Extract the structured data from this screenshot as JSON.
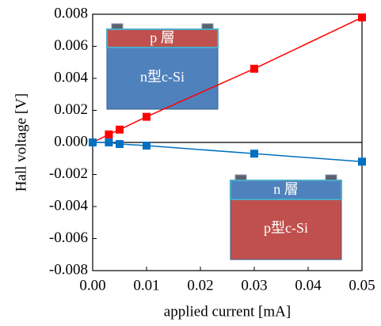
{
  "chart_data": {
    "type": "line",
    "x_label": "applied current [mA]",
    "y_label": "Hall voltage [V]",
    "x": [
      0,
      0.003,
      0.005,
      0.01,
      0.03,
      0.05
    ],
    "series": [
      {
        "color": "#ff0000",
        "values": [
          0,
          0.0005,
          0.0008,
          0.0016,
          0.0046,
          0.0078
        ]
      },
      {
        "color": "#0070c0",
        "values": [
          0,
          0,
          -0.0001,
          -0.0002,
          -0.0007,
          -0.0012
        ]
      }
    ],
    "xlim": [
      0,
      0.05
    ],
    "xticks": [
      {
        "value": 0,
        "label": "0.00"
      },
      0.01,
      0.02,
      0.03,
      0.04,
      0.05
    ],
    "ylim": [
      -0.008,
      0.008
    ],
    "yticks": [
      -0.008,
      -0.006,
      -0.004,
      -0.002,
      {
        "value": 0,
        "label": "0.000"
      },
      0.002,
      0.004,
      0.006,
      0.008
    ],
    "zero_line": true,
    "insets": [
      {
        "top_layer": "p 層",
        "substrate": "n型c-Si",
        "top_color": "#c0504d",
        "substrate_color": "#4f81bd"
      },
      {
        "top_layer": "n 層",
        "substrate": "p型c-Si",
        "top_color": "#4f81bd",
        "substrate_color": "#c0504d"
      }
    ]
  }
}
